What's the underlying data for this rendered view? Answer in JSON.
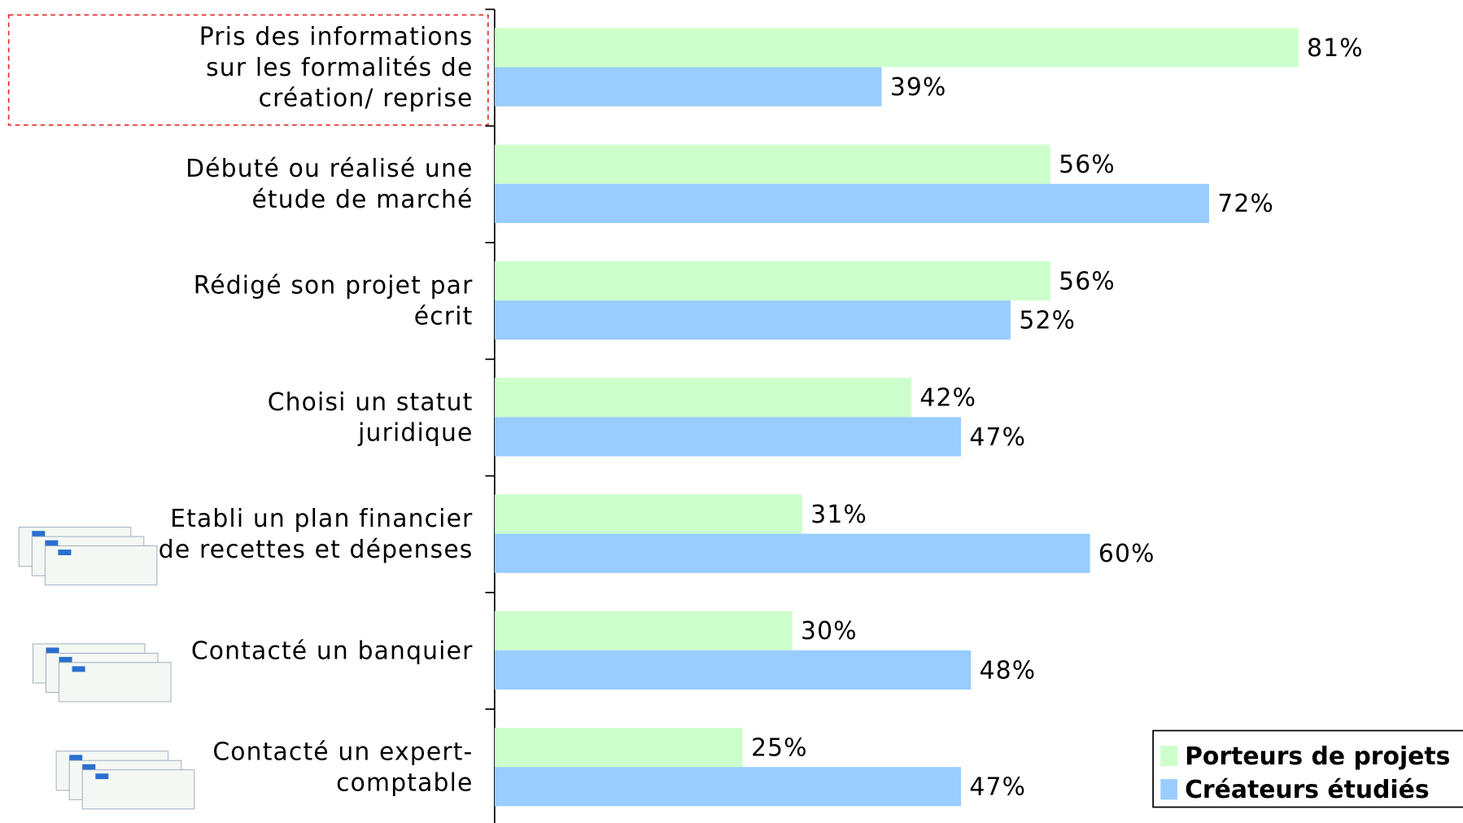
{
  "chart_data": {
    "type": "bar",
    "orientation": "horizontal",
    "categories": [
      [
        "Pris des informations",
        "sur les formalités de",
        "création/ reprise"
      ],
      [
        "Débuté ou réalisé une",
        "étude de marché"
      ],
      [
        "Rédigé son projet par",
        "écrit"
      ],
      [
        "Choisi un statut",
        "juridique"
      ],
      [
        "Etabli un plan financier",
        "de recettes et dépenses"
      ],
      [
        "Contacté un banquier"
      ],
      [
        "Contacté un expert-",
        "comptable"
      ]
    ],
    "series": [
      {
        "name": "Porteurs de projets",
        "color": "#ccffcc",
        "values": [
          81,
          56,
          56,
          42,
          31,
          30,
          25
        ],
        "value_labels": [
          "81%",
          "56%",
          "56%",
          "42%",
          "31%",
          "30%",
          "25%"
        ]
      },
      {
        "name": "Créateurs étudiés",
        "color": "#99ccff",
        "values": [
          39,
          72,
          52,
          47,
          60,
          48,
          47
        ],
        "value_labels": [
          "39%",
          "72%",
          "52%",
          "47%",
          "60%",
          "48%",
          "47%"
        ]
      }
    ],
    "legend": "bottom-right"
  }
}
